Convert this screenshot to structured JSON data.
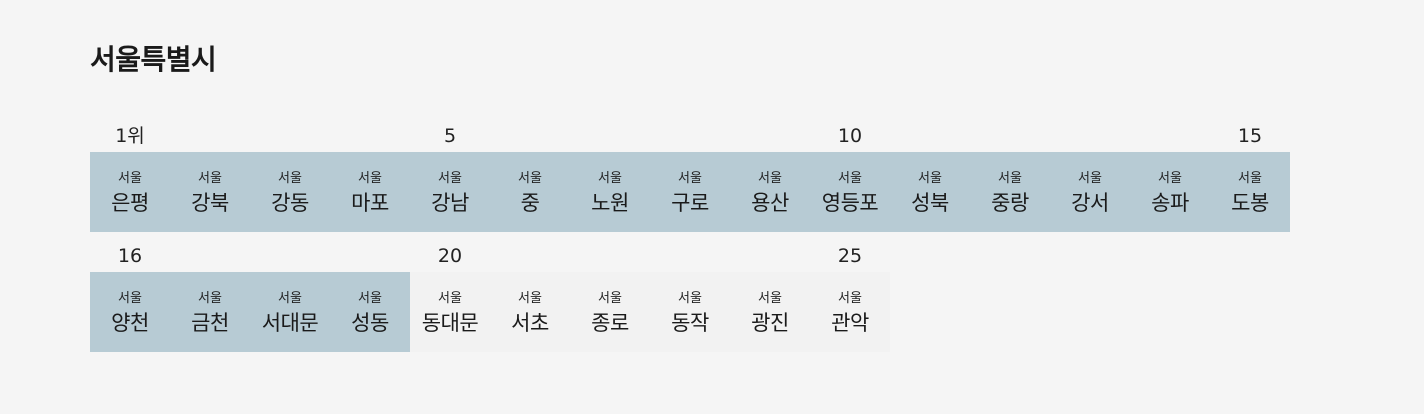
{
  "title": "서울특별시",
  "rows": [
    {
      "ranks": [
        {
          "col": 0,
          "label": "1위"
        },
        {
          "col": 4,
          "label": "5"
        },
        {
          "col": 9,
          "label": "10"
        },
        {
          "col": 14,
          "label": "15"
        }
      ],
      "cells": [
        {
          "sub": "서울",
          "name": "은평",
          "highlight": true
        },
        {
          "sub": "서울",
          "name": "강북",
          "highlight": true
        },
        {
          "sub": "서울",
          "name": "강동",
          "highlight": true
        },
        {
          "sub": "서울",
          "name": "마포",
          "highlight": true
        },
        {
          "sub": "서울",
          "name": "강남",
          "highlight": true
        },
        {
          "sub": "서울",
          "name": "중",
          "highlight": true
        },
        {
          "sub": "서울",
          "name": "노원",
          "highlight": true
        },
        {
          "sub": "서울",
          "name": "구로",
          "highlight": true
        },
        {
          "sub": "서울",
          "name": "용산",
          "highlight": true
        },
        {
          "sub": "서울",
          "name": "영등포",
          "highlight": true
        },
        {
          "sub": "서울",
          "name": "성북",
          "highlight": true
        },
        {
          "sub": "서울",
          "name": "중랑",
          "highlight": true
        },
        {
          "sub": "서울",
          "name": "강서",
          "highlight": true
        },
        {
          "sub": "서울",
          "name": "송파",
          "highlight": true
        },
        {
          "sub": "서울",
          "name": "도봉",
          "highlight": true
        }
      ]
    },
    {
      "ranks": [
        {
          "col": 0,
          "label": "16"
        },
        {
          "col": 4,
          "label": "20"
        },
        {
          "col": 9,
          "label": "25"
        }
      ],
      "cells": [
        {
          "sub": "서울",
          "name": "양천",
          "highlight": true
        },
        {
          "sub": "서울",
          "name": "금천",
          "highlight": true
        },
        {
          "sub": "서울",
          "name": "서대문",
          "highlight": true
        },
        {
          "sub": "서울",
          "name": "성동",
          "highlight": true
        },
        {
          "sub": "서울",
          "name": "동대문",
          "highlight": false
        },
        {
          "sub": "서울",
          "name": "서초",
          "highlight": false
        },
        {
          "sub": "서울",
          "name": "종로",
          "highlight": false
        },
        {
          "sub": "서울",
          "name": "동작",
          "highlight": false
        },
        {
          "sub": "서울",
          "name": "광진",
          "highlight": false
        },
        {
          "sub": "서울",
          "name": "관악",
          "highlight": false
        }
      ]
    }
  ],
  "colors": {
    "highlight": "#b7cbd4",
    "plain": "#f2f2f2",
    "background": "#f5f5f5"
  }
}
